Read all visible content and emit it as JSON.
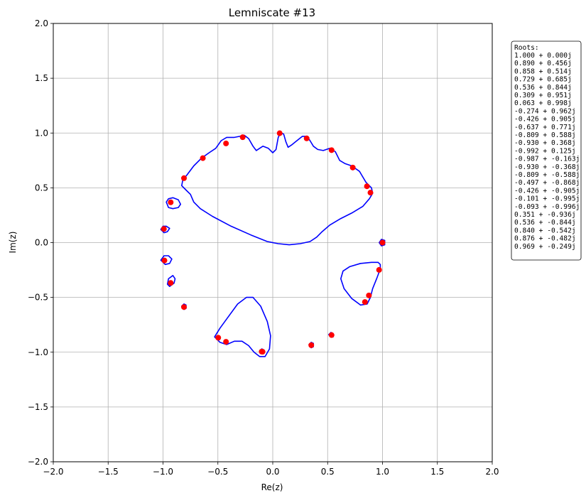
{
  "chart_data": {
    "type": "scatter",
    "title": "Lemniscate #13",
    "xlabel": "Re(z)",
    "ylabel": "Im(z)",
    "xlim": [
      -2.0,
      2.0
    ],
    "ylim": [
      -2.0,
      2.0
    ],
    "x_ticks": [
      -2.0,
      -1.5,
      -1.0,
      -0.5,
      0.0,
      0.5,
      1.0,
      1.5,
      2.0
    ],
    "y_ticks": [
      -2.0,
      -1.5,
      -1.0,
      -0.5,
      0.0,
      0.5,
      1.0,
      1.5,
      2.0
    ],
    "x_tick_labels": [
      "−2.0",
      "−1.5",
      "−1.0",
      "−0.5",
      "0.0",
      "0.5",
      "1.0",
      "1.5",
      "2.0"
    ],
    "y_tick_labels": [
      "−2.0",
      "−1.5",
      "−1.0",
      "−0.5",
      "0.0",
      "0.5",
      "1.0",
      "1.5",
      "2.0"
    ],
    "grid": true,
    "legend_placement": "right",
    "colors": {
      "curve": "#0000ff",
      "roots": "#ff0000",
      "grid": "#b0b0b0"
    },
    "roots_heading": "Roots:",
    "roots_labels": [
      "1.000 + 0.000j",
      "0.890 + 0.456j",
      "0.858 + 0.514j",
      "0.729 + 0.685j",
      "0.536 + 0.844j",
      "0.309 + 0.951j",
      "0.063 + 0.998j",
      "-0.274 + 0.962j",
      "-0.426 + 0.905j",
      "-0.637 + 0.771j",
      "-0.809 + 0.588j",
      "-0.930 + 0.368j",
      "-0.992 + 0.125j",
      "-0.987 + -0.163j",
      "-0.930 + -0.368j",
      "-0.809 + -0.588j",
      "-0.497 + -0.868j",
      "-0.426 + -0.905j",
      "-0.101 + -0.995j",
      "-0.093 + -0.996j",
      "0.351 + -0.936j",
      "0.536 + -0.844j",
      "0.840 + -0.542j",
      "0.876 + -0.482j",
      "0.969 + -0.249j"
    ],
    "roots": [
      [
        1.0,
        0.0
      ],
      [
        0.89,
        0.456
      ],
      [
        0.858,
        0.514
      ],
      [
        0.729,
        0.685
      ],
      [
        0.536,
        0.844
      ],
      [
        0.309,
        0.951
      ],
      [
        0.063,
        0.998
      ],
      [
        -0.274,
        0.962
      ],
      [
        -0.426,
        0.905
      ],
      [
        -0.637,
        0.771
      ],
      [
        -0.809,
        0.588
      ],
      [
        -0.93,
        0.368
      ],
      [
        -0.992,
        0.125
      ],
      [
        -0.987,
        -0.163
      ],
      [
        -0.93,
        -0.368
      ],
      [
        -0.809,
        -0.588
      ],
      [
        -0.497,
        -0.868
      ],
      [
        -0.426,
        -0.905
      ],
      [
        -0.101,
        -0.995
      ],
      [
        -0.093,
        -0.996
      ],
      [
        0.351,
        -0.936
      ],
      [
        0.536,
        -0.844
      ],
      [
        0.84,
        -0.542
      ],
      [
        0.876,
        -0.482
      ],
      [
        0.969,
        -0.249
      ]
    ],
    "curves": [
      {
        "points": [
          [
            -0.82,
            0.57
          ],
          [
            -0.78,
            0.62
          ],
          [
            -0.72,
            0.7
          ],
          [
            -0.65,
            0.77
          ],
          [
            -0.58,
            0.82
          ],
          [
            -0.52,
            0.86
          ],
          [
            -0.47,
            0.93
          ],
          [
            -0.42,
            0.96
          ],
          [
            -0.35,
            0.96
          ],
          [
            -0.3,
            0.97
          ],
          [
            -0.26,
            0.98
          ],
          [
            -0.22,
            0.95
          ],
          [
            -0.18,
            0.88
          ],
          [
            -0.15,
            0.84
          ],
          [
            -0.12,
            0.86
          ],
          [
            -0.09,
            0.88
          ],
          [
            -0.04,
            0.86
          ],
          [
            0.0,
            0.82
          ],
          [
            0.03,
            0.85
          ],
          [
            0.05,
            0.96
          ],
          [
            0.07,
            1.0
          ],
          [
            0.1,
            0.99
          ],
          [
            0.12,
            0.92
          ],
          [
            0.14,
            0.87
          ],
          [
            0.17,
            0.89
          ],
          [
            0.22,
            0.93
          ],
          [
            0.27,
            0.97
          ],
          [
            0.31,
            0.97
          ],
          [
            0.34,
            0.93
          ],
          [
            0.37,
            0.88
          ],
          [
            0.41,
            0.85
          ],
          [
            0.46,
            0.84
          ],
          [
            0.52,
            0.86
          ],
          [
            0.57,
            0.83
          ],
          [
            0.61,
            0.75
          ],
          [
            0.66,
            0.72
          ],
          [
            0.72,
            0.7
          ],
          [
            0.79,
            0.65
          ],
          [
            0.85,
            0.55
          ],
          [
            0.9,
            0.5
          ],
          [
            0.91,
            0.45
          ],
          [
            0.88,
            0.4
          ],
          [
            0.82,
            0.33
          ],
          [
            0.72,
            0.27
          ],
          [
            0.62,
            0.22
          ],
          [
            0.52,
            0.16
          ],
          [
            0.45,
            0.1
          ],
          [
            0.4,
            0.05
          ],
          [
            0.34,
            0.01
          ],
          [
            0.25,
            -0.01
          ],
          [
            0.15,
            -0.02
          ],
          [
            0.05,
            -0.01
          ],
          [
            -0.05,
            0.01
          ],
          [
            -0.2,
            0.07
          ],
          [
            -0.38,
            0.15
          ],
          [
            -0.55,
            0.24
          ],
          [
            -0.66,
            0.31
          ],
          [
            -0.72,
            0.37
          ],
          [
            -0.75,
            0.44
          ],
          [
            -0.79,
            0.48
          ],
          [
            -0.83,
            0.52
          ],
          [
            -0.82,
            0.57
          ]
        ]
      },
      {
        "points": [
          [
            -0.97,
            0.37
          ],
          [
            -0.95,
            0.4
          ],
          [
            -0.91,
            0.41
          ],
          [
            -0.86,
            0.39
          ],
          [
            -0.84,
            0.35
          ],
          [
            -0.86,
            0.32
          ],
          [
            -0.91,
            0.31
          ],
          [
            -0.95,
            0.32
          ],
          [
            -0.97,
            0.37
          ]
        ]
      },
      {
        "points": [
          [
            -1.02,
            0.12
          ],
          [
            -1.0,
            0.15
          ],
          [
            -0.97,
            0.15
          ],
          [
            -0.94,
            0.13
          ],
          [
            -0.96,
            0.1
          ],
          [
            -0.99,
            0.09
          ],
          [
            -1.02,
            0.12
          ]
        ]
      },
      {
        "points": [
          [
            -1.02,
            -0.16
          ],
          [
            -0.99,
            -0.12
          ],
          [
            -0.95,
            -0.12
          ],
          [
            -0.92,
            -0.15
          ],
          [
            -0.94,
            -0.19
          ],
          [
            -0.98,
            -0.2
          ],
          [
            -1.02,
            -0.16
          ]
        ]
      },
      {
        "points": [
          [
            -0.96,
            -0.38
          ],
          [
            -0.95,
            -0.33
          ],
          [
            -0.91,
            -0.3
          ],
          [
            -0.89,
            -0.33
          ],
          [
            -0.9,
            -0.37
          ],
          [
            -0.94,
            -0.4
          ],
          [
            -0.96,
            -0.38
          ]
        ]
      },
      {
        "points": [
          [
            -0.83,
            -0.58
          ],
          [
            -0.81,
            -0.56
          ],
          [
            -0.79,
            -0.57
          ],
          [
            -0.79,
            -0.6
          ],
          [
            -0.81,
            -0.61
          ],
          [
            -0.83,
            -0.58
          ]
        ]
      },
      {
        "points": [
          [
            -0.53,
            -0.86
          ],
          [
            -0.48,
            -0.78
          ],
          [
            -0.4,
            -0.67
          ],
          [
            -0.32,
            -0.56
          ],
          [
            -0.24,
            -0.5
          ],
          [
            -0.18,
            -0.5
          ],
          [
            -0.11,
            -0.58
          ],
          [
            -0.05,
            -0.72
          ],
          [
            -0.02,
            -0.85
          ],
          [
            -0.03,
            -0.97
          ],
          [
            -0.07,
            -1.04
          ],
          [
            -0.12,
            -1.04
          ],
          [
            -0.17,
            -1.0
          ],
          [
            -0.22,
            -0.94
          ],
          [
            -0.28,
            -0.9
          ],
          [
            -0.35,
            -0.9
          ],
          [
            -0.42,
            -0.93
          ],
          [
            -0.48,
            -0.91
          ],
          [
            -0.53,
            -0.86
          ]
        ]
      },
      {
        "points": [
          [
            -0.12,
            -0.99
          ],
          [
            -0.1,
            -0.97
          ],
          [
            -0.08,
            -0.98
          ],
          [
            -0.08,
            -1.01
          ],
          [
            -0.11,
            -1.01
          ],
          [
            -0.12,
            -0.99
          ]
        ]
      },
      {
        "points": [
          [
            0.33,
            -0.93
          ],
          [
            0.35,
            -0.91
          ],
          [
            0.37,
            -0.92
          ],
          [
            0.37,
            -0.95
          ],
          [
            0.35,
            -0.96
          ],
          [
            0.33,
            -0.93
          ]
        ]
      },
      {
        "points": [
          [
            0.51,
            -0.84
          ],
          [
            0.53,
            -0.82
          ],
          [
            0.55,
            -0.83
          ],
          [
            0.55,
            -0.86
          ],
          [
            0.53,
            -0.86
          ],
          [
            0.51,
            -0.84
          ]
        ]
      },
      {
        "points": [
          [
            0.98,
            -0.2
          ],
          [
            0.96,
            -0.18
          ],
          [
            0.9,
            -0.18
          ],
          [
            0.8,
            -0.19
          ],
          [
            0.7,
            -0.22
          ],
          [
            0.64,
            -0.26
          ],
          [
            0.62,
            -0.33
          ],
          [
            0.65,
            -0.42
          ],
          [
            0.72,
            -0.51
          ],
          [
            0.8,
            -0.57
          ],
          [
            0.86,
            -0.56
          ],
          [
            0.89,
            -0.5
          ],
          [
            0.91,
            -0.42
          ],
          [
            0.95,
            -0.32
          ],
          [
            0.98,
            -0.24
          ],
          [
            0.98,
            -0.2
          ]
        ]
      },
      {
        "points": [
          [
            0.97,
            0.0
          ],
          [
            0.99,
            0.03
          ],
          [
            1.02,
            0.02
          ],
          [
            1.02,
            -0.02
          ],
          [
            0.99,
            -0.03
          ],
          [
            0.97,
            0.0
          ]
        ]
      }
    ]
  }
}
